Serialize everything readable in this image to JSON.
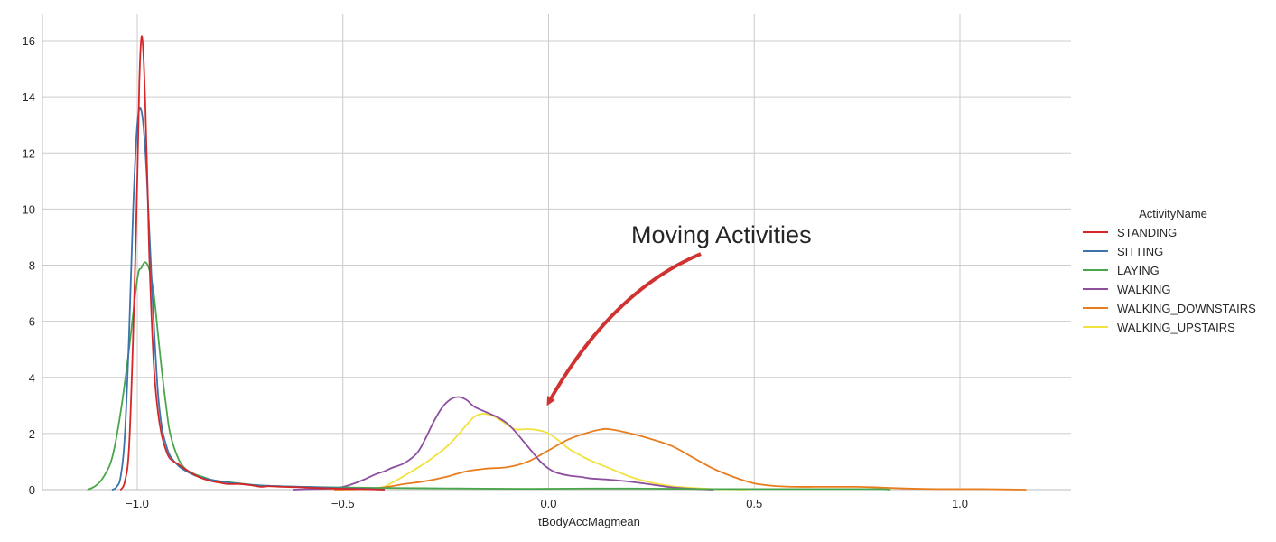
{
  "chart_data": {
    "type": "line",
    "title": "",
    "xlabel": "tBodyAccMagmean",
    "ylabel": "",
    "xlim": [
      -1.25,
      1.25
    ],
    "ylim": [
      0,
      17
    ],
    "xticks": [
      -1.0,
      -0.5,
      0.0,
      0.5,
      1.0
    ],
    "xtick_labels": [
      "−1.0",
      "−0.5",
      "0.0",
      "0.5",
      "1.0"
    ],
    "yticks": [
      0,
      2,
      4,
      6,
      8,
      10,
      12,
      14,
      16
    ],
    "ytick_labels": [
      "0",
      "2",
      "4",
      "6",
      "8",
      "10",
      "12",
      "14",
      "16"
    ],
    "grid": true,
    "legend": {
      "title": "ActivityName",
      "placement": "right"
    },
    "annotation": {
      "text": "Moving Activities",
      "arrow_tail": [
        0.37,
        8.4
      ],
      "arrow_head": [
        0.0,
        3.1
      ],
      "color": "#d03232"
    },
    "series": [
      {
        "name": "STANDING",
        "color": "#d62728",
        "x": [
          -1.04,
          -1.03,
          -1.02,
          -1.01,
          -1.0,
          -0.995,
          -0.99,
          -0.985,
          -0.98,
          -0.975,
          -0.97,
          -0.96,
          -0.95,
          -0.94,
          -0.93,
          -0.92,
          -0.9,
          -0.88,
          -0.85,
          -0.82,
          -0.8,
          -0.78,
          -0.75,
          -0.72,
          -0.7,
          -0.68,
          -0.65,
          -0.6,
          -0.55,
          -0.5,
          -0.45,
          -0.4
        ],
        "y": [
          0.0,
          0.3,
          1.5,
          5.5,
          11.0,
          14.5,
          16.1,
          15.5,
          13.5,
          10.8,
          8.0,
          4.5,
          2.8,
          1.9,
          1.4,
          1.1,
          0.9,
          0.7,
          0.45,
          0.3,
          0.25,
          0.2,
          0.2,
          0.15,
          0.1,
          0.12,
          0.1,
          0.08,
          0.05,
          0.03,
          0.02,
          0.0
        ]
      },
      {
        "name": "SITTING",
        "color": "#3d72ab",
        "x": [
          -1.06,
          -1.05,
          -1.04,
          -1.03,
          -1.02,
          -1.01,
          -1.0,
          -0.99,
          -0.98,
          -0.97,
          -0.96,
          -0.95,
          -0.94,
          -0.93,
          -0.92,
          -0.9,
          -0.88,
          -0.85,
          -0.82,
          -0.8,
          -0.75,
          -0.7,
          -0.65,
          -0.6,
          -0.55,
          -0.5,
          -0.45,
          -0.4
        ],
        "y": [
          0.0,
          0.1,
          0.5,
          2.0,
          5.5,
          10.0,
          13.0,
          13.5,
          12.0,
          9.0,
          6.0,
          3.5,
          2.2,
          1.6,
          1.2,
          0.85,
          0.65,
          0.45,
          0.35,
          0.3,
          0.2,
          0.15,
          0.12,
          0.1,
          0.08,
          0.05,
          0.03,
          0.0
        ]
      },
      {
        "name": "LAYING",
        "color": "#4aa64a",
        "x": [
          -1.12,
          -1.1,
          -1.08,
          -1.06,
          -1.04,
          -1.02,
          -1.0,
          -0.99,
          -0.98,
          -0.97,
          -0.96,
          -0.95,
          -0.94,
          -0.93,
          -0.92,
          -0.9,
          -0.88,
          -0.86,
          -0.84,
          -0.82,
          -0.8,
          -0.75,
          -0.7,
          -0.6,
          -0.5,
          -0.4,
          -0.3,
          -0.2,
          -0.1,
          0.0,
          0.1,
          0.2,
          0.3,
          0.4,
          0.5,
          0.6,
          0.7,
          0.8,
          0.83
        ],
        "y": [
          0.0,
          0.15,
          0.5,
          1.2,
          2.8,
          5.0,
          7.5,
          7.9,
          8.1,
          7.8,
          7.0,
          5.6,
          4.2,
          3.0,
          2.0,
          1.1,
          0.7,
          0.55,
          0.45,
          0.35,
          0.3,
          0.22,
          0.15,
          0.1,
          0.08,
          0.06,
          0.05,
          0.04,
          0.03,
          0.03,
          0.04,
          0.04,
          0.03,
          0.02,
          0.02,
          0.02,
          0.02,
          0.02,
          0.0
        ]
      },
      {
        "name": "WALKING",
        "color": "#8e4f9e",
        "x": [
          -0.62,
          -0.58,
          -0.55,
          -0.52,
          -0.5,
          -0.48,
          -0.45,
          -0.42,
          -0.4,
          -0.38,
          -0.35,
          -0.32,
          -0.3,
          -0.28,
          -0.26,
          -0.24,
          -0.22,
          -0.2,
          -0.18,
          -0.15,
          -0.12,
          -0.1,
          -0.08,
          -0.06,
          -0.04,
          -0.02,
          0.0,
          0.02,
          0.05,
          0.08,
          0.1,
          0.15,
          0.2,
          0.25,
          0.3,
          0.35,
          0.4
        ],
        "y": [
          0.0,
          0.02,
          0.03,
          0.05,
          0.1,
          0.18,
          0.35,
          0.55,
          0.65,
          0.78,
          0.95,
          1.3,
          1.8,
          2.4,
          2.9,
          3.2,
          3.3,
          3.2,
          2.95,
          2.75,
          2.55,
          2.35,
          2.05,
          1.7,
          1.35,
          1.0,
          0.75,
          0.6,
          0.5,
          0.45,
          0.4,
          0.35,
          0.28,
          0.18,
          0.08,
          0.03,
          0.0
        ]
      },
      {
        "name": "WALKING_DOWNSTAIRS",
        "color": "#e87d1e",
        "x": [
          -0.52,
          -0.45,
          -0.4,
          -0.35,
          -0.3,
          -0.25,
          -0.2,
          -0.15,
          -0.1,
          -0.05,
          0.0,
          0.05,
          0.1,
          0.13,
          0.15,
          0.2,
          0.25,
          0.3,
          0.35,
          0.4,
          0.45,
          0.5,
          0.55,
          0.6,
          0.65,
          0.7,
          0.75,
          0.8,
          0.85,
          0.9,
          0.95,
          1.0,
          1.05,
          1.1,
          1.16
        ],
        "y": [
          0.0,
          0.02,
          0.08,
          0.2,
          0.3,
          0.45,
          0.65,
          0.75,
          0.8,
          1.0,
          1.4,
          1.8,
          2.05,
          2.15,
          2.15,
          2.0,
          1.8,
          1.55,
          1.15,
          0.75,
          0.45,
          0.22,
          0.13,
          0.1,
          0.1,
          0.1,
          0.1,
          0.08,
          0.05,
          0.03,
          0.02,
          0.02,
          0.02,
          0.01,
          0.0
        ]
      },
      {
        "name": "WALKING_UPSTAIRS",
        "color": "#f1e23e",
        "x": [
          -0.45,
          -0.42,
          -0.4,
          -0.38,
          -0.35,
          -0.3,
          -0.25,
          -0.22,
          -0.2,
          -0.18,
          -0.16,
          -0.14,
          -0.12,
          -0.1,
          -0.08,
          -0.06,
          -0.04,
          -0.02,
          0.0,
          0.02,
          0.05,
          0.08,
          0.1,
          0.15,
          0.2,
          0.25,
          0.3,
          0.35,
          0.4,
          0.45,
          0.48
        ],
        "y": [
          0.0,
          0.05,
          0.1,
          0.25,
          0.5,
          0.95,
          1.5,
          1.95,
          2.3,
          2.6,
          2.7,
          2.65,
          2.5,
          2.3,
          2.15,
          2.15,
          2.15,
          2.1,
          2.0,
          1.8,
          1.45,
          1.2,
          1.05,
          0.75,
          0.45,
          0.25,
          0.12,
          0.06,
          0.02,
          0.01,
          0.0
        ]
      }
    ]
  }
}
